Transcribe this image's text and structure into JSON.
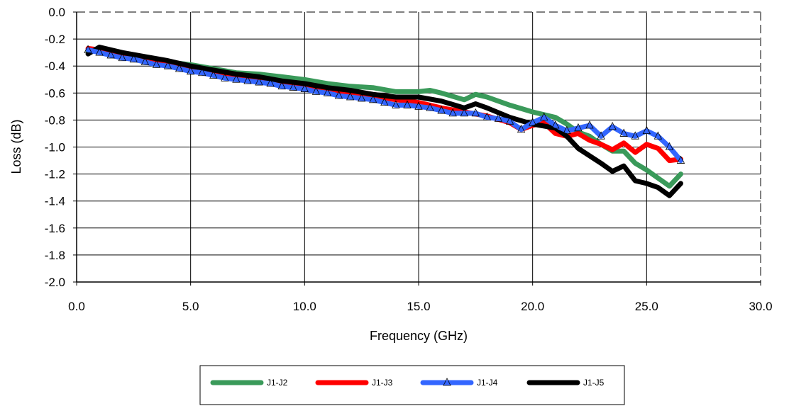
{
  "chart_data": {
    "type": "line",
    "title": "",
    "xlabel": "Frequency (GHz)",
    "ylabel": "Loss (dB)",
    "xlim": [
      0,
      30
    ],
    "ylim": [
      -2.0,
      0.0
    ],
    "x_ticks": [
      "0.0",
      "5.0",
      "10.0",
      "15.0",
      "20.0",
      "25.0",
      "30.0"
    ],
    "y_ticks": [
      "0.0",
      "-0.2",
      "-0.4",
      "-0.6",
      "-0.8",
      "-1.0",
      "-1.2",
      "-1.4",
      "-1.6",
      "-1.8",
      "-2.0"
    ],
    "grid": true,
    "legend_position": "bottom",
    "series": [
      {
        "name": "J1-J2",
        "color": "#3a9a5a",
        "marker": "none",
        "points": [
          [
            0.5,
            -0.29
          ],
          [
            1,
            -0.27
          ],
          [
            2,
            -0.31
          ],
          [
            3,
            -0.35
          ],
          [
            4,
            -0.37
          ],
          [
            5,
            -0.39
          ],
          [
            6,
            -0.42
          ],
          [
            7,
            -0.45
          ],
          [
            8,
            -0.46
          ],
          [
            9,
            -0.48
          ],
          [
            10,
            -0.5
          ],
          [
            11,
            -0.53
          ],
          [
            12,
            -0.55
          ],
          [
            13,
            -0.56
          ],
          [
            14,
            -0.59
          ],
          [
            15,
            -0.59
          ],
          [
            15.5,
            -0.58
          ],
          [
            16,
            -0.6
          ],
          [
            17,
            -0.65
          ],
          [
            17.5,
            -0.61
          ],
          [
            18,
            -0.63
          ],
          [
            19,
            -0.69
          ],
          [
            20,
            -0.74
          ],
          [
            21,
            -0.78
          ],
          [
            21.5,
            -0.83
          ],
          [
            22,
            -0.89
          ],
          [
            22.5,
            -0.92
          ],
          [
            23,
            -0.98
          ],
          [
            23.5,
            -1.03
          ],
          [
            24,
            -1.03
          ],
          [
            24.5,
            -1.12
          ],
          [
            25,
            -1.17
          ],
          [
            25.5,
            -1.23
          ],
          [
            26,
            -1.29
          ],
          [
            26.5,
            -1.2
          ]
        ]
      },
      {
        "name": "J1-J3",
        "color": "#ff0000",
        "marker": "none",
        "points": [
          [
            0.5,
            -0.27
          ],
          [
            1,
            -0.28
          ],
          [
            2,
            -0.32
          ],
          [
            3,
            -0.36
          ],
          [
            4,
            -0.38
          ],
          [
            5,
            -0.41
          ],
          [
            6,
            -0.44
          ],
          [
            7,
            -0.47
          ],
          [
            8,
            -0.49
          ],
          [
            9,
            -0.52
          ],
          [
            10,
            -0.54
          ],
          [
            11,
            -0.57
          ],
          [
            12,
            -0.6
          ],
          [
            13,
            -0.62
          ],
          [
            14,
            -0.65
          ],
          [
            15,
            -0.67
          ],
          [
            16,
            -0.71
          ],
          [
            17,
            -0.74
          ],
          [
            18,
            -0.77
          ],
          [
            19,
            -0.82
          ],
          [
            19.5,
            -0.87
          ],
          [
            20,
            -0.84
          ],
          [
            20.5,
            -0.82
          ],
          [
            21,
            -0.9
          ],
          [
            21.5,
            -0.92
          ],
          [
            22,
            -0.9
          ],
          [
            22.5,
            -0.95
          ],
          [
            23,
            -0.98
          ],
          [
            23.5,
            -1.02
          ],
          [
            24,
            -0.97
          ],
          [
            24.5,
            -1.04
          ],
          [
            25,
            -0.98
          ],
          [
            25.5,
            -1.01
          ],
          [
            26,
            -1.1
          ],
          [
            26.5,
            -1.09
          ]
        ]
      },
      {
        "name": "J1-J4",
        "color": "#3366ff",
        "marker": "triangle",
        "points": [
          [
            0.5,
            -0.28
          ],
          [
            1,
            -0.3
          ],
          [
            1.5,
            -0.32
          ],
          [
            2,
            -0.34
          ],
          [
            2.5,
            -0.35
          ],
          [
            3,
            -0.37
          ],
          [
            3.5,
            -0.39
          ],
          [
            4,
            -0.4
          ],
          [
            4.5,
            -0.42
          ],
          [
            5,
            -0.44
          ],
          [
            5.5,
            -0.45
          ],
          [
            6,
            -0.47
          ],
          [
            6.5,
            -0.49
          ],
          [
            7,
            -0.5
          ],
          [
            7.5,
            -0.51
          ],
          [
            8,
            -0.52
          ],
          [
            8.5,
            -0.53
          ],
          [
            9,
            -0.55
          ],
          [
            9.5,
            -0.56
          ],
          [
            10,
            -0.57
          ],
          [
            10.5,
            -0.59
          ],
          [
            11,
            -0.6
          ],
          [
            11.5,
            -0.62
          ],
          [
            12,
            -0.63
          ],
          [
            12.5,
            -0.64
          ],
          [
            13,
            -0.65
          ],
          [
            13.5,
            -0.67
          ],
          [
            14,
            -0.69
          ],
          [
            14.5,
            -0.69
          ],
          [
            15,
            -0.7
          ],
          [
            15.5,
            -0.71
          ],
          [
            16,
            -0.73
          ],
          [
            16.5,
            -0.75
          ],
          [
            17,
            -0.75
          ],
          [
            17.5,
            -0.75
          ],
          [
            18,
            -0.78
          ],
          [
            18.5,
            -0.79
          ],
          [
            19,
            -0.81
          ],
          [
            19.5,
            -0.87
          ],
          [
            20,
            -0.82
          ],
          [
            20.5,
            -0.78
          ],
          [
            21,
            -0.84
          ],
          [
            21.5,
            -0.88
          ],
          [
            22,
            -0.86
          ],
          [
            22.5,
            -0.84
          ],
          [
            23,
            -0.92
          ],
          [
            23.5,
            -0.85
          ],
          [
            24,
            -0.9
          ],
          [
            24.5,
            -0.92
          ],
          [
            25,
            -0.88
          ],
          [
            25.5,
            -0.92
          ],
          [
            26,
            -1.0
          ],
          [
            26.5,
            -1.1
          ]
        ]
      },
      {
        "name": "J1-J5",
        "color": "#000000",
        "marker": "none",
        "points": [
          [
            0.5,
            -0.31
          ],
          [
            1,
            -0.26
          ],
          [
            2,
            -0.3
          ],
          [
            3,
            -0.33
          ],
          [
            4,
            -0.36
          ],
          [
            5,
            -0.4
          ],
          [
            6,
            -0.43
          ],
          [
            7,
            -0.46
          ],
          [
            8,
            -0.48
          ],
          [
            9,
            -0.51
          ],
          [
            10,
            -0.53
          ],
          [
            11,
            -0.56
          ],
          [
            12,
            -0.58
          ],
          [
            13,
            -0.61
          ],
          [
            14,
            -0.63
          ],
          [
            15,
            -0.63
          ],
          [
            16,
            -0.66
          ],
          [
            17,
            -0.71
          ],
          [
            17.5,
            -0.68
          ],
          [
            18,
            -0.71
          ],
          [
            19,
            -0.78
          ],
          [
            20,
            -0.83
          ],
          [
            21,
            -0.86
          ],
          [
            21.5,
            -0.92
          ],
          [
            22,
            -1.01
          ],
          [
            23,
            -1.12
          ],
          [
            23.5,
            -1.18
          ],
          [
            24,
            -1.14
          ],
          [
            24.5,
            -1.25
          ],
          [
            25,
            -1.27
          ],
          [
            25.5,
            -1.3
          ],
          [
            26,
            -1.36
          ],
          [
            26.5,
            -1.27
          ]
        ]
      }
    ]
  }
}
